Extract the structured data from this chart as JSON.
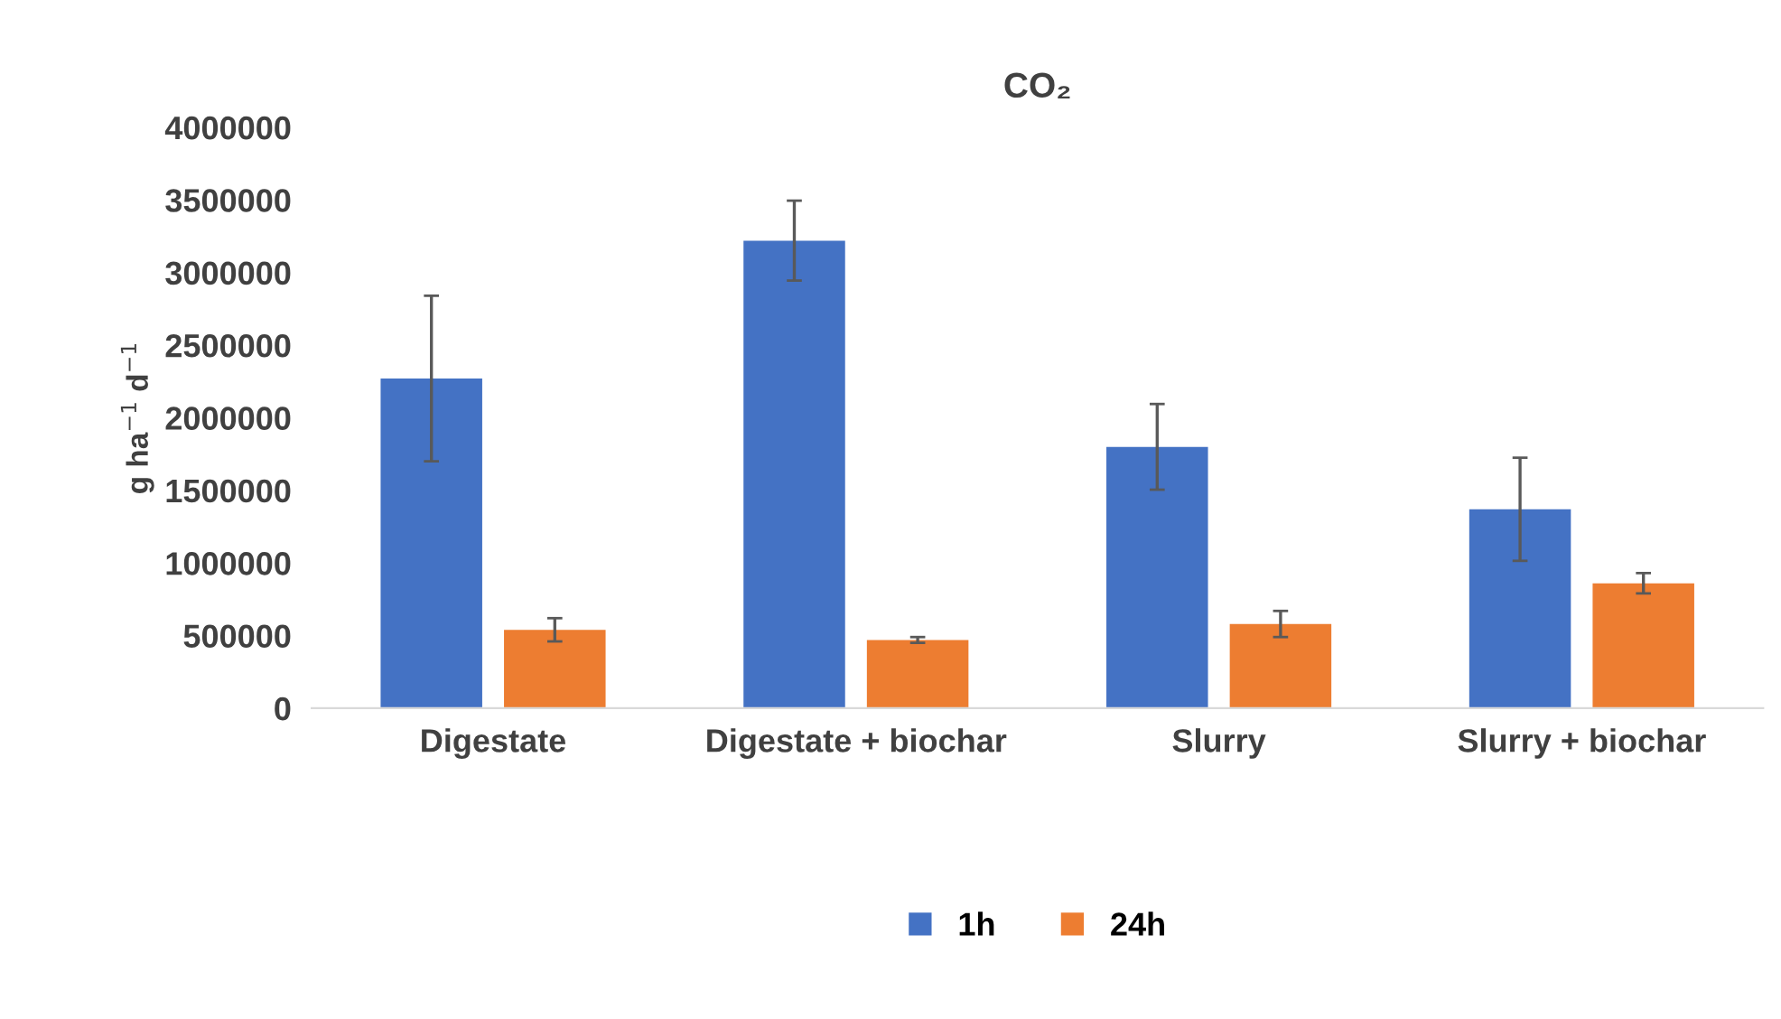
{
  "chart_data": {
    "type": "bar",
    "title": "CO₂",
    "ylabel": "g ha$^{−1}$ d$^{−1}$",
    "categories": [
      "Digestate",
      "Digestate + biochar",
      "Slurry",
      "Slurry + biochar"
    ],
    "series": [
      {
        "name": "1h",
        "color": "#4472c4",
        "values": [
          2270000,
          3220000,
          1800000,
          1370000
        ],
        "errors": [
          570000,
          275000,
          295000,
          355000
        ]
      },
      {
        "name": "24h",
        "color": "#ed7d31",
        "values": [
          540000,
          470000,
          580000,
          860000
        ],
        "errors": [
          80000,
          20000,
          90000,
          70000
        ]
      }
    ],
    "ylim": [
      0,
      4000000
    ],
    "yticks": [
      0,
      500000,
      1000000,
      1500000,
      2000000,
      2500000,
      3000000,
      3500000,
      4000000
    ],
    "grid": false,
    "legend": "bottom"
  }
}
